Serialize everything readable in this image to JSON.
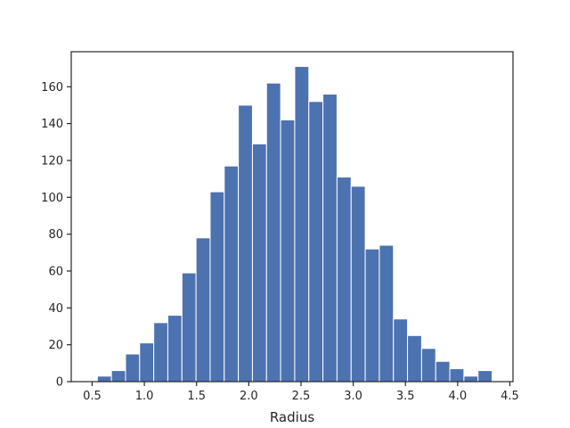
{
  "chart_data": {
    "type": "bar",
    "title": "",
    "xlabel": "Radius",
    "ylabel": "",
    "xlim": [
      0.3,
      4.53
    ],
    "ylim": [
      0,
      179
    ],
    "grid": false,
    "bar_color": "#4c72b0",
    "bin_edges": [
      0.55,
      0.685,
      0.82,
      0.955,
      1.09,
      1.225,
      1.36,
      1.495,
      1.63,
      1.765,
      1.9,
      2.035,
      2.17,
      2.305,
      2.44,
      2.575,
      2.71,
      2.845,
      2.98,
      3.115,
      3.25,
      3.385,
      3.52,
      3.655,
      3.79,
      3.925,
      4.06,
      4.195,
      4.33
    ],
    "values": [
      3,
      6,
      15,
      21,
      32,
      36,
      59,
      78,
      103,
      117,
      150,
      129,
      162,
      142,
      171,
      152,
      156,
      111,
      106,
      72,
      74,
      34,
      25,
      18,
      11,
      7,
      3,
      6
    ],
    "x_ticks": [
      0.5,
      1.0,
      1.5,
      2.0,
      2.5,
      3.0,
      3.5,
      4.0,
      4.5
    ],
    "x_tick_labels": [
      "0.5",
      "1.0",
      "1.5",
      "2.0",
      "2.5",
      "3.0",
      "3.5",
      "4.0",
      "4.5"
    ],
    "y_ticks": [
      0,
      20,
      40,
      60,
      80,
      100,
      120,
      140,
      160
    ],
    "y_tick_labels": [
      "0",
      "20",
      "40",
      "60",
      "80",
      "100",
      "120",
      "140",
      "160"
    ]
  }
}
